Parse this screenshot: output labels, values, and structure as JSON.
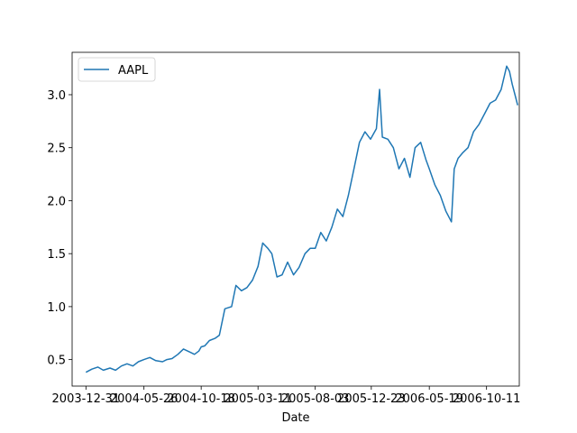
{
  "chart_data": {
    "type": "line",
    "xlabel": "Date",
    "ylabel": "",
    "title": "",
    "legend": {
      "placement": "top-left"
    },
    "grid": false,
    "xlim": [
      "2003-11-26",
      "2007-01-02"
    ],
    "ylim": [
      0.25,
      3.4
    ],
    "x_ticks": [
      "2003-12-31",
      "2004-05-26",
      "2004-10-18",
      "2005-03-11",
      "2005-08-03",
      "2005-12-23",
      "2006-05-19",
      "2006-10-11"
    ],
    "y_ticks": [
      0.5,
      1.0,
      1.5,
      2.0,
      2.5,
      3.0
    ],
    "y_tick_labels": [
      "0.5",
      "1.0",
      "1.5",
      "2.0",
      "2.5",
      "3.0"
    ],
    "colors": {
      "line": "#1f77b4"
    },
    "series": [
      {
        "name": "AAPL",
        "x": [
          "2003-12-31",
          "2004-01-15",
          "2004-01-30",
          "2004-02-13",
          "2004-03-01",
          "2004-03-15",
          "2004-03-30",
          "2004-04-13",
          "2004-04-28",
          "2004-05-12",
          "2004-05-26",
          "2004-06-10",
          "2004-06-25",
          "2004-07-12",
          "2004-07-23",
          "2004-08-05",
          "2004-08-20",
          "2004-09-03",
          "2004-09-20",
          "2004-10-01",
          "2004-10-12",
          "2004-10-18",
          "2004-10-27",
          "2004-11-08",
          "2004-11-22",
          "2004-12-03",
          "2004-12-17",
          "2005-01-03",
          "2005-01-14",
          "2005-01-28",
          "2005-02-11",
          "2005-02-25",
          "2005-03-11",
          "2005-03-23",
          "2005-04-05",
          "2005-04-15",
          "2005-04-28",
          "2005-05-11",
          "2005-05-25",
          "2005-06-09",
          "2005-06-23",
          "2005-07-08",
          "2005-07-21",
          "2005-08-03",
          "2005-08-17",
          "2005-08-31",
          "2005-09-14",
          "2005-09-28",
          "2005-10-12",
          "2005-10-26",
          "2005-11-09",
          "2005-11-23",
          "2005-12-07",
          "2005-12-21",
          "2006-01-05",
          "2006-01-13",
          "2006-01-20",
          "2006-02-03",
          "2006-02-17",
          "2006-03-03",
          "2006-03-17",
          "2006-03-31",
          "2006-04-13",
          "2006-04-27",
          "2006-05-11",
          "2006-05-19",
          "2006-06-02",
          "2006-06-16",
          "2006-06-30",
          "2006-07-14",
          "2006-07-21",
          "2006-07-31",
          "2006-08-11",
          "2006-08-25",
          "2006-09-08",
          "2006-09-22",
          "2006-10-06",
          "2006-10-20",
          "2006-11-03",
          "2006-11-17",
          "2006-12-01",
          "2006-12-08",
          "2006-12-15",
          "2006-12-22",
          "2006-12-29"
        ],
        "y": [
          0.38,
          0.41,
          0.43,
          0.4,
          0.42,
          0.4,
          0.44,
          0.46,
          0.44,
          0.48,
          0.5,
          0.52,
          0.49,
          0.48,
          0.5,
          0.51,
          0.55,
          0.6,
          0.57,
          0.55,
          0.58,
          0.62,
          0.63,
          0.68,
          0.7,
          0.73,
          0.98,
          1.0,
          1.2,
          1.15,
          1.18,
          1.25,
          1.38,
          1.6,
          1.55,
          1.5,
          1.28,
          1.3,
          1.42,
          1.3,
          1.37,
          1.5,
          1.55,
          1.55,
          1.7,
          1.62,
          1.75,
          1.92,
          1.85,
          2.05,
          2.3,
          2.55,
          2.65,
          2.58,
          2.68,
          3.05,
          2.6,
          2.58,
          2.5,
          2.3,
          2.4,
          2.22,
          2.5,
          2.55,
          2.38,
          2.3,
          2.15,
          2.05,
          1.9,
          1.8,
          2.3,
          2.4,
          2.45,
          2.5,
          2.65,
          2.72,
          2.82,
          2.92,
          2.95,
          3.05,
          3.27,
          3.22,
          3.1,
          3.0,
          2.9
        ]
      }
    ]
  }
}
